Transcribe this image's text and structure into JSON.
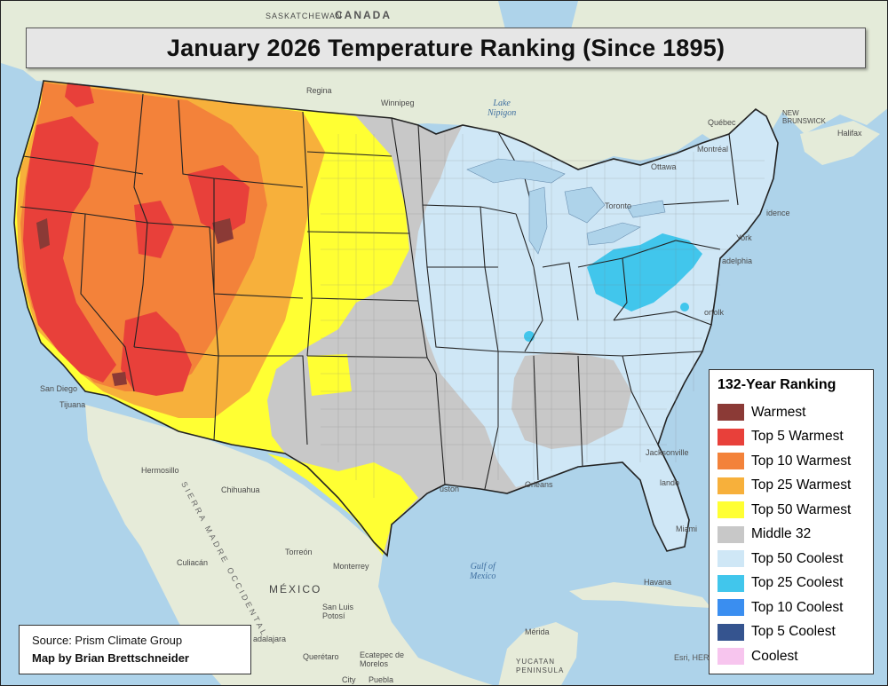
{
  "title": "January 2026 Temperature Ranking (Since 1895)",
  "legend": {
    "title": "132-Year Ranking",
    "items": [
      {
        "label": "Warmest",
        "color": "#8b3a36"
      },
      {
        "label": "Top 5 Warmest",
        "color": "#e8403a"
      },
      {
        "label": "Top 10 Warmest",
        "color": "#f3823a"
      },
      {
        "label": "Top 25 Warmest",
        "color": "#f7b03b"
      },
      {
        "label": "Top 50 Warmest",
        "color": "#ffff33"
      },
      {
        "label": "Middle 32",
        "color": "#c8c8c8"
      },
      {
        "label": "Top 50 Coolest",
        "color": "#cfe7f6"
      },
      {
        "label": "Top 25 Coolest",
        "color": "#41c6ec"
      },
      {
        "label": "Top 10 Coolest",
        "color": "#3a8ef0"
      },
      {
        "label": "Top 5 Coolest",
        "color": "#35548f"
      },
      {
        "label": "Coolest",
        "color": "#f7c5ee"
      }
    ]
  },
  "source": "Source: Prism Climate Group",
  "author": "Map by Brian Brettschneider",
  "basemap": {
    "countries": {
      "canada": "CANADA",
      "mexico": "MÉXICO"
    },
    "regions": {
      "sierra": "SIERRA MADRE OCCIDENTAL"
    },
    "water": {
      "gulf": "Gulf of\nMexico",
      "lake_nipigon": "Lake\nNipigon"
    },
    "places": {
      "saskatchewan": "SASKATCHEWAN",
      "regina": "Regina",
      "winnipeg": "Winnipeg",
      "montreal": "Montréal",
      "ottawa": "Ottawa",
      "toronto": "Toronto",
      "quebec": "Québec",
      "halifax": "Halifax",
      "new_brunswick": "NEW\nBRUNSWICK",
      "york": "York",
      "philadelphia": "adelphia",
      "norfolk": "orfolk",
      "providence": "idence",
      "jacksonville": "Jacksonville",
      "orlando": "lando",
      "miami": "Miami",
      "orleans": "Orleans",
      "houston": "uston",
      "san_diego": "San Diego",
      "tijuana": "Tijuana",
      "hermosillo": "Hermosillo",
      "chihuahua": "Chihuahua",
      "culiacan": "Culiacán",
      "torreon": "Torreón",
      "monterrey": "Monterrey",
      "san_luis_potosi": "San Luis\nPotosí",
      "guadalajara": "adalajara",
      "queretaro": "Querétaro",
      "ecatepec": "Ecatepec de\nMorelos",
      "puebla": "Puebla",
      "mexico_city": "City",
      "merida": "Mérida",
      "yucatan": "YUCATAN\nPENINSULA",
      "havana": "Havana"
    },
    "attribution": "Esri, HERE"
  }
}
